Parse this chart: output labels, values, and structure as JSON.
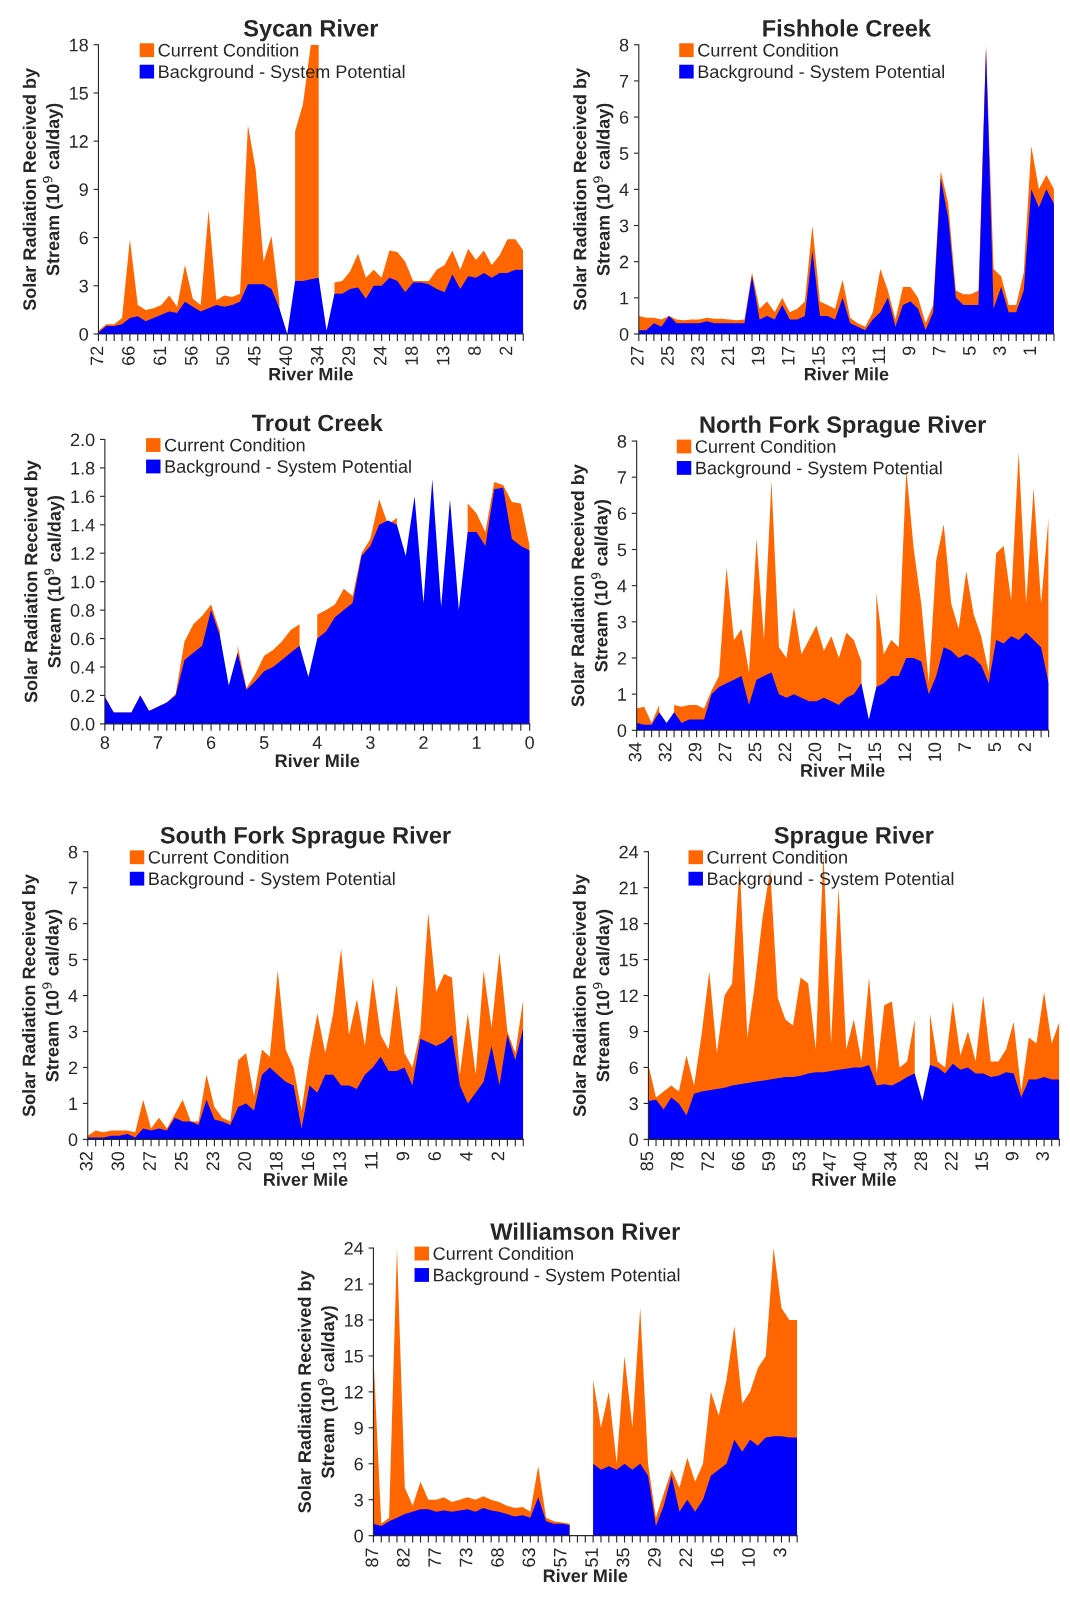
{
  "chart_data": [
    {
      "type": "area",
      "title": "Sycan River",
      "xlabel": "River Mile",
      "ylabel": "Solar Radiation Received by\nStream (10$^{9}$ cal/day)",
      "legend": "top left",
      "categories": [
        "72",
        null,
        null,
        null,
        "66",
        null,
        null,
        null,
        "61",
        null,
        null,
        null,
        "56",
        null,
        null,
        null,
        "50",
        null,
        null,
        null,
        "45",
        null,
        null,
        null,
        "40",
        null,
        null,
        null,
        "34",
        null,
        null,
        null,
        "29",
        null,
        null,
        null,
        "24",
        null,
        null,
        null,
        "18",
        null,
        null,
        null,
        "13",
        null,
        null,
        null,
        "8",
        null,
        null,
        null,
        "2",
        null,
        null
      ],
      "ylim": [
        0,
        18
      ],
      "yticks": [
        0,
        3,
        6,
        9,
        12,
        15,
        18
      ],
      "series": [
        {
          "name": "Current Condition",
          "color": "#ff6600",
          "values": [
            0.2,
            0.6,
            0.6,
            1.0,
            5.9,
            1.8,
            1.5,
            1.6,
            1.8,
            2.4,
            1.7,
            4.3,
            2.2,
            1.8,
            7.7,
            2.1,
            2.4,
            2.3,
            2.5,
            13.0,
            10.2,
            4.5,
            6.1,
            2.0,
            null,
            12.6,
            14.3,
            18.0,
            18.0,
            null,
            3.2,
            3.3,
            3.9,
            5.0,
            3.5,
            4.0,
            3.5,
            5.2,
            5.1,
            4.5,
            3.3,
            3.3,
            3.3,
            4.0,
            4.3,
            5.2,
            4.0,
            5.3,
            4.6,
            5.2,
            4.3,
            4.9,
            5.9,
            5.9,
            5.2
          ]
        },
        {
          "name": "Background - System Potential",
          "color": "#0000ff",
          "values": [
            0.1,
            0.5,
            0.5,
            0.6,
            1.0,
            1.1,
            0.8,
            1.0,
            1.2,
            1.4,
            1.3,
            2.0,
            1.7,
            1.4,
            1.6,
            1.8,
            1.7,
            1.8,
            2.0,
            3.1,
            3.1,
            3.1,
            2.8,
            1.6,
            0.0,
            3.3,
            3.3,
            3.4,
            3.5,
            0.2,
            2.5,
            2.5,
            2.8,
            2.9,
            2.2,
            3.0,
            3.0,
            3.5,
            3.3,
            2.6,
            3.2,
            3.2,
            3.1,
            2.8,
            2.6,
            3.7,
            2.8,
            3.6,
            3.5,
            3.8,
            3.5,
            3.8,
            3.8,
            4.0,
            4.0
          ]
        }
      ]
    },
    {
      "type": "area",
      "title": "Fishhole Creek",
      "xlabel": "River Mile",
      "ylabel": "Solar Radiation Received by\nStream (10$^{9}$ cal/day)",
      "legend": "top left",
      "categories": [
        "27",
        null,
        null,
        null,
        "25",
        null,
        null,
        null,
        "23",
        null,
        null,
        null,
        "21",
        null,
        null,
        null,
        "19",
        null,
        null,
        null,
        "17",
        null,
        null,
        null,
        "15",
        null,
        null,
        null,
        "13",
        null,
        null,
        null,
        "11",
        null,
        null,
        null,
        "9",
        null,
        null,
        null,
        "7",
        null,
        null,
        null,
        "5",
        null,
        null,
        null,
        "3",
        null,
        null,
        null,
        "1",
        null,
        null,
        null
      ],
      "ylim": [
        0,
        8
      ],
      "yticks": [
        0,
        1,
        2,
        3,
        4,
        5,
        6,
        7,
        8
      ],
      "series": [
        {
          "name": "Current Condition",
          "color": "#ff6600",
          "values": [
            0.5,
            0.45,
            0.45,
            0.4,
            0.5,
            0.4,
            0.38,
            0.4,
            0.4,
            0.45,
            0.42,
            0.42,
            0.4,
            0.38,
            0.4,
            1.7,
            0.7,
            0.9,
            0.6,
            1.0,
            0.6,
            0.7,
            0.9,
            3.0,
            0.9,
            0.8,
            0.7,
            1.5,
            0.45,
            0.3,
            0.2,
            0.6,
            1.8,
            1.2,
            0.4,
            1.3,
            1.3,
            1.0,
            0.3,
            0.8,
            4.5,
            3.6,
            1.2,
            1.1,
            1.1,
            1.2,
            8.0,
            1.8,
            1.6,
            0.8,
            0.8,
            1.7,
            5.2,
            4.0,
            4.4,
            4.0
          ]
        },
        {
          "name": "Background - System Potential",
          "color": "#0000ff",
          "values": [
            0.1,
            0.1,
            0.3,
            0.2,
            0.5,
            0.3,
            0.3,
            0.3,
            0.3,
            0.35,
            0.3,
            0.3,
            0.3,
            0.3,
            0.3,
            1.6,
            0.4,
            0.5,
            0.4,
            0.8,
            0.4,
            0.4,
            0.5,
            2.3,
            0.5,
            0.5,
            0.4,
            1.0,
            0.3,
            0.2,
            0.1,
            0.4,
            0.6,
            1.0,
            0.2,
            0.8,
            0.9,
            0.7,
            0.1,
            0.6,
            4.3,
            3.2,
            1.0,
            0.8,
            0.8,
            0.8,
            7.9,
            0.7,
            1.3,
            0.6,
            0.6,
            1.2,
            4.0,
            3.5,
            4.0,
            3.6
          ]
        }
      ]
    },
    {
      "type": "area",
      "title": "Trout Creek",
      "xlabel": "River Mile",
      "ylabel": "Solar Radiation Received by\nStream (10$^{9}$ cal/day)",
      "legend": "top left",
      "categories": [
        "8",
        null,
        null,
        null,
        null,
        null,
        "7",
        null,
        null,
        null,
        null,
        null,
        "6",
        null,
        null,
        null,
        null,
        null,
        "5",
        null,
        null,
        null,
        null,
        null,
        "4",
        null,
        null,
        null,
        null,
        null,
        "3",
        null,
        null,
        null,
        null,
        null,
        "2",
        null,
        null,
        null,
        null,
        null,
        "1",
        null,
        null,
        null,
        null,
        null,
        "0"
      ],
      "ylim": [
        0,
        2
      ],
      "yticks": [
        {
          "value": 0,
          "label": "0.0"
        },
        {
          "value": 0.2,
          "label": "0.2"
        },
        {
          "value": 0.4,
          "label": "0.4"
        },
        {
          "value": 0.6,
          "label": "0.6"
        },
        {
          "value": 0.8,
          "label": "0.8"
        },
        {
          "value": 1.0,
          "label": "1.0"
        },
        {
          "value": 1.2,
          "label": "1.2"
        },
        {
          "value": 1.4,
          "label": "1.4"
        },
        {
          "value": 1.6,
          "label": "1.6"
        },
        {
          "value": 1.8,
          "label": "1.8"
        },
        {
          "value": 2.0,
          "label": "2.0"
        }
      ],
      "series": [
        {
          "name": "Current Condition",
          "color": "#ff6600",
          "values": [
            0.19,
            0.08,
            0.08,
            0.08,
            0.2,
            0.09,
            0.12,
            0.15,
            0.21,
            0.58,
            0.7,
            0.76,
            0.84,
            0.65,
            null,
            0.55,
            0.25,
            0.35,
            0.48,
            0.52,
            0.58,
            0.66,
            0.7,
            null,
            0.77,
            0.8,
            0.84,
            0.95,
            0.9,
            1.2,
            1.3,
            1.58,
            1.4,
            1.45,
            null,
            null,
            null,
            null,
            null,
            null,
            null,
            1.55,
            1.48,
            1.35,
            1.7,
            1.68,
            1.56,
            1.55,
            1.25
          ]
        },
        {
          "name": "Background - System Potential",
          "color": "#0000ff",
          "values": [
            0.19,
            0.08,
            0.08,
            0.08,
            0.2,
            0.09,
            0.12,
            0.15,
            0.2,
            0.45,
            0.5,
            0.55,
            0.8,
            0.62,
            0.27,
            0.5,
            0.24,
            0.3,
            0.37,
            0.4,
            0.45,
            0.5,
            0.55,
            0.33,
            0.6,
            0.65,
            0.75,
            0.8,
            0.85,
            1.18,
            1.25,
            1.4,
            1.43,
            1.4,
            1.18,
            1.6,
            0.85,
            1.72,
            0.82,
            1.58,
            0.8,
            1.35,
            1.35,
            1.25,
            1.65,
            1.66,
            1.3,
            1.25,
            1.22
          ]
        }
      ]
    },
    {
      "type": "area",
      "title": "North Fork Sprague River",
      "xlabel": "River Mile",
      "ylabel": "Solar Radiation Received by\nStream (10$^{9}$ cal/day)",
      "legend": "top left",
      "categories": [
        "34",
        null,
        null,
        null,
        "32",
        null,
        null,
        null,
        "29",
        null,
        null,
        null,
        "27",
        null,
        null,
        null,
        "25",
        null,
        null,
        null,
        "22",
        null,
        null,
        null,
        "20",
        null,
        null,
        null,
        "17",
        null,
        null,
        null,
        "15",
        null,
        null,
        null,
        "12",
        null,
        null,
        null,
        "10",
        null,
        null,
        null,
        "7",
        null,
        null,
        null,
        "5",
        null,
        null,
        null,
        "2",
        null,
        null,
        null
      ],
      "ylim": [
        0,
        8
      ],
      "yticks": [
        0,
        1,
        2,
        3,
        4,
        5,
        6,
        7,
        8
      ],
      "series": [
        {
          "name": "Current Condition",
          "color": "#ff6600",
          "values": [
            0.6,
            0.65,
            0.2,
            0.7,
            null,
            0.7,
            0.65,
            0.7,
            0.7,
            0.6,
            1.1,
            1.5,
            4.5,
            2.5,
            2.8,
            1.6,
            5.3,
            2.5,
            6.9,
            2.3,
            2.0,
            3.4,
            2.1,
            2.5,
            2.9,
            2.2,
            2.6,
            2.0,
            2.7,
            2.5,
            1.9,
            null,
            3.8,
            2.1,
            2.5,
            2.3,
            7.2,
            5.0,
            3.5,
            1.3,
            4.7,
            5.7,
            3.5,
            2.8,
            4.4,
            3.2,
            2.6,
            1.6,
            4.9,
            5.1,
            3.6,
            7.7,
            3.5,
            6.7,
            3.5,
            5.9
          ]
        },
        {
          "name": "Background - System Potential",
          "color": "#0000ff",
          "values": [
            0.2,
            0.15,
            0.15,
            0.5,
            0.2,
            0.5,
            0.2,
            0.3,
            0.3,
            0.3,
            1.0,
            1.2,
            1.3,
            1.4,
            1.5,
            0.7,
            1.4,
            1.5,
            1.6,
            1.0,
            0.9,
            1.0,
            0.9,
            0.8,
            0.8,
            0.9,
            0.8,
            0.7,
            0.9,
            1.0,
            1.3,
            0.3,
            1.2,
            1.3,
            1.5,
            1.5,
            2.0,
            2.0,
            1.9,
            1.0,
            1.5,
            2.3,
            2.2,
            2.0,
            2.1,
            2.0,
            1.8,
            1.3,
            2.5,
            2.4,
            2.6,
            2.5,
            2.7,
            2.5,
            2.3,
            1.3
          ]
        }
      ]
    },
    {
      "type": "area",
      "title": "South Fork Sprague River",
      "xlabel": "River Mile",
      "ylabel": "Solar Radiation Received by\nStream (10$^{9}$ cal/day)",
      "legend": "top left",
      "categories": [
        "32",
        null,
        null,
        null,
        "30",
        null,
        null,
        null,
        "27",
        null,
        null,
        null,
        "25",
        null,
        null,
        null,
        "23",
        null,
        null,
        null,
        "20",
        null,
        null,
        null,
        "18",
        null,
        null,
        null,
        "16",
        null,
        null,
        null,
        "13",
        null,
        null,
        null,
        "11",
        null,
        null,
        null,
        "9",
        null,
        null,
        null,
        "6",
        null,
        null,
        null,
        "4",
        null,
        null,
        null,
        "2",
        null,
        null,
        null
      ],
      "ylim": [
        0,
        8
      ],
      "yticks": [
        0,
        1,
        2,
        3,
        4,
        5,
        6,
        7,
        8
      ],
      "series": [
        {
          "name": "Current Condition",
          "color": "#ff6600",
          "values": [
            0.1,
            0.25,
            0.2,
            0.25,
            0.25,
            0.25,
            0.2,
            1.1,
            0.3,
            0.6,
            0.3,
            0.7,
            1.1,
            0.5,
            0.5,
            1.8,
            0.9,
            0.6,
            0.5,
            2.2,
            2.4,
            1.2,
            2.5,
            2.3,
            4.7,
            2.5,
            2.0,
            0.8,
            2.3,
            3.5,
            2.4,
            3.5,
            5.3,
            2.9,
            3.9,
            2.6,
            4.5,
            2.9,
            2.5,
            4.3,
            2.4,
            2.0,
            3.0,
            6.3,
            4.1,
            4.6,
            4.5,
            1.8,
            3.5,
            1.8,
            4.7,
            3.1,
            5.2,
            3.0,
            2.4,
            3.9
          ]
        },
        {
          "name": "Background - System Potential",
          "color": "#0000ff",
          "values": [
            0.05,
            0.05,
            0.05,
            0.1,
            0.1,
            0.15,
            0.05,
            0.3,
            0.25,
            0.3,
            0.25,
            0.6,
            0.5,
            0.5,
            0.4,
            1.1,
            0.55,
            0.5,
            0.4,
            0.9,
            1.0,
            0.8,
            1.8,
            2.0,
            1.8,
            1.6,
            1.5,
            0.3,
            1.5,
            1.3,
            1.8,
            1.8,
            1.5,
            1.5,
            1.4,
            1.8,
            2.0,
            2.3,
            1.9,
            1.9,
            2.0,
            1.5,
            2.8,
            2.7,
            2.6,
            2.7,
            2.9,
            1.5,
            1.0,
            1.3,
            1.6,
            2.6,
            1.5,
            2.9,
            2.2,
            3.1
          ]
        }
      ]
    },
    {
      "type": "area",
      "title": "Sprague River",
      "xlabel": "River Mile",
      "ylabel": "Solar Radiation Received by\nStream (10$^{9}$ cal/day)",
      "legend": "top left",
      "categories": [
        "85",
        null,
        null,
        null,
        "78",
        null,
        null,
        null,
        "72",
        null,
        null,
        null,
        "66",
        null,
        null,
        null,
        "59",
        null,
        null,
        null,
        "53",
        null,
        null,
        null,
        "47",
        null,
        null,
        null,
        "40",
        null,
        null,
        null,
        "34",
        null,
        null,
        null,
        "28",
        null,
        null,
        null,
        "22",
        null,
        null,
        null,
        "15",
        null,
        null,
        null,
        "9",
        null,
        null,
        null,
        "3",
        null,
        null
      ],
      "ylim": [
        0,
        24
      ],
      "yticks": [
        0,
        3,
        6,
        9,
        12,
        15,
        18,
        21,
        24
      ],
      "series": [
        {
          "name": "Current Condition",
          "color": "#ff6600",
          "values": [
            6.2,
            3.5,
            4.0,
            4.5,
            4.0,
            7.0,
            4.5,
            8.8,
            14.0,
            7.2,
            12.0,
            13.0,
            23.0,
            8.5,
            13.0,
            18.5,
            22.5,
            11.8,
            10.0,
            9.5,
            13.5,
            13.0,
            7.5,
            24.0,
            8.0,
            21.0,
            7.5,
            10.0,
            6.5,
            13.5,
            5.5,
            11.2,
            11.5,
            6.0,
            6.5,
            10.0,
            null,
            10.5,
            6.5,
            6.0,
            11.5,
            7.0,
            9.0,
            6.5,
            12.0,
            6.5,
            6.5,
            7.5,
            9.8,
            4.0,
            8.5,
            8.0,
            12.3,
            8.0,
            9.8
          ]
        },
        {
          "name": "Background - System Potential",
          "color": "#0000ff",
          "values": [
            3.2,
            3.3,
            2.5,
            3.5,
            3.0,
            2.0,
            3.8,
            4.0,
            4.1,
            4.2,
            4.3,
            4.5,
            4.6,
            4.7,
            4.8,
            4.9,
            5.0,
            5.1,
            5.2,
            5.2,
            5.3,
            5.5,
            5.6,
            5.6,
            5.7,
            5.8,
            5.9,
            6.0,
            6.0,
            6.2,
            4.5,
            4.6,
            4.5,
            4.8,
            5.2,
            5.5,
            3.2,
            6.2,
            6.0,
            5.5,
            6.3,
            5.8,
            6.0,
            5.5,
            5.5,
            5.2,
            5.3,
            5.6,
            5.5,
            3.5,
            5.0,
            5.0,
            5.2,
            5.0,
            5.0
          ]
        }
      ]
    },
    {
      "type": "area",
      "title": "Williamson River",
      "xlabel": "River Mile",
      "ylabel": "Solar Radiation Received by\nStream (10$^{9}$ cal/day)",
      "legend": "top left",
      "categories": [
        "87",
        null,
        null,
        null,
        "82",
        null,
        null,
        null,
        "77",
        null,
        null,
        null,
        "73",
        null,
        null,
        null,
        "68",
        null,
        null,
        null,
        "63",
        null,
        null,
        null,
        "57",
        null,
        null,
        null,
        "51",
        null,
        null,
        null,
        "35",
        null,
        null,
        null,
        "29",
        null,
        null,
        null,
        "22",
        null,
        null,
        null,
        "16",
        null,
        null,
        null,
        "10",
        null,
        null,
        null,
        "3",
        null,
        null
      ],
      "ylim": [
        0,
        24
      ],
      "yticks": [
        0,
        3,
        6,
        9,
        12,
        15,
        18,
        21,
        24
      ],
      "series": [
        {
          "name": "Current Condition",
          "color": "#ff6600",
          "values": [
            15.0,
            1.0,
            1.5,
            24.0,
            4.0,
            2.5,
            4.5,
            3.0,
            3.0,
            3.2,
            2.8,
            3.0,
            3.2,
            3.0,
            3.3,
            3.0,
            2.8,
            2.5,
            2.3,
            2.4,
            2.0,
            5.8,
            1.5,
            1.2,
            1.1,
            1.0,
            null,
            null,
            13.0,
            9.0,
            12.0,
            6.0,
            15.0,
            9.0,
            19.0,
            6.0,
            1.5,
            3.5,
            5.5,
            4.0,
            6.5,
            4.5,
            6.0,
            12.0,
            10.0,
            13.0,
            17.5,
            11.0,
            12.0,
            14.0,
            15.0,
            24.0,
            19.0,
            18.0,
            18.0
          ]
        },
        {
          "name": "Background - System Potential",
          "color": "#0000ff",
          "values": [
            1.0,
            0.8,
            1.2,
            1.5,
            1.8,
            2.0,
            2.2,
            2.2,
            2.0,
            2.1,
            2.0,
            2.1,
            2.2,
            2.0,
            2.3,
            2.1,
            2.0,
            1.8,
            1.6,
            1.7,
            1.5,
            3.2,
            1.2,
            1.0,
            1.0,
            0.9,
            null,
            null,
            6.0,
            5.5,
            5.8,
            5.5,
            6.0,
            5.5,
            6.0,
            5.0,
            0.8,
            2.5,
            5.0,
            2.0,
            3.0,
            2.0,
            3.0,
            5.0,
            5.5,
            6.0,
            8.0,
            7.0,
            8.0,
            7.5,
            8.2,
            8.3,
            8.3,
            8.2,
            8.2
          ]
        }
      ]
    }
  ]
}
